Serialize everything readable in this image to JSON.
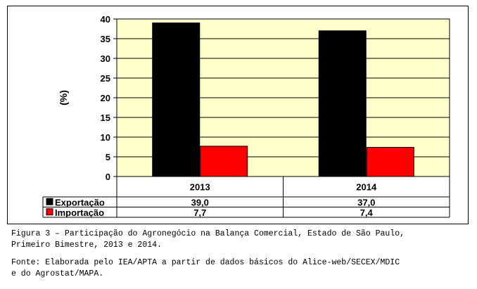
{
  "chart_data": {
    "type": "bar",
    "categories": [
      "2013",
      "2014"
    ],
    "series": [
      {
        "name": "Exportação",
        "values": [
          39.0,
          37.0
        ],
        "labels": [
          "39,0",
          "37,0"
        ],
        "color": "#000000"
      },
      {
        "name": "Importação",
        "values": [
          7.7,
          7.4
        ],
        "labels": [
          "7,7",
          "7,4"
        ],
        "color": "#ff0000"
      }
    ],
    "ylabel": "(%)",
    "ylim": [
      0,
      40
    ],
    "yticks": [
      0,
      5,
      10,
      15,
      20,
      25,
      30,
      35,
      40
    ],
    "grid": true,
    "plot_background": "#ffffcc",
    "data_table": true
  },
  "caption": {
    "figure": "Figura 3 – Participação do Agronegócio na Balança Comercial, Estado de São Paulo,\nPrimeiro Bimestre, 2013 e 2014.",
    "source": "Fonte: Elaborada pelo IEA/APTA a partir de dados básicos do Alice-web/SECEX/MDIC\ne do Agrostat/MAPA."
  }
}
